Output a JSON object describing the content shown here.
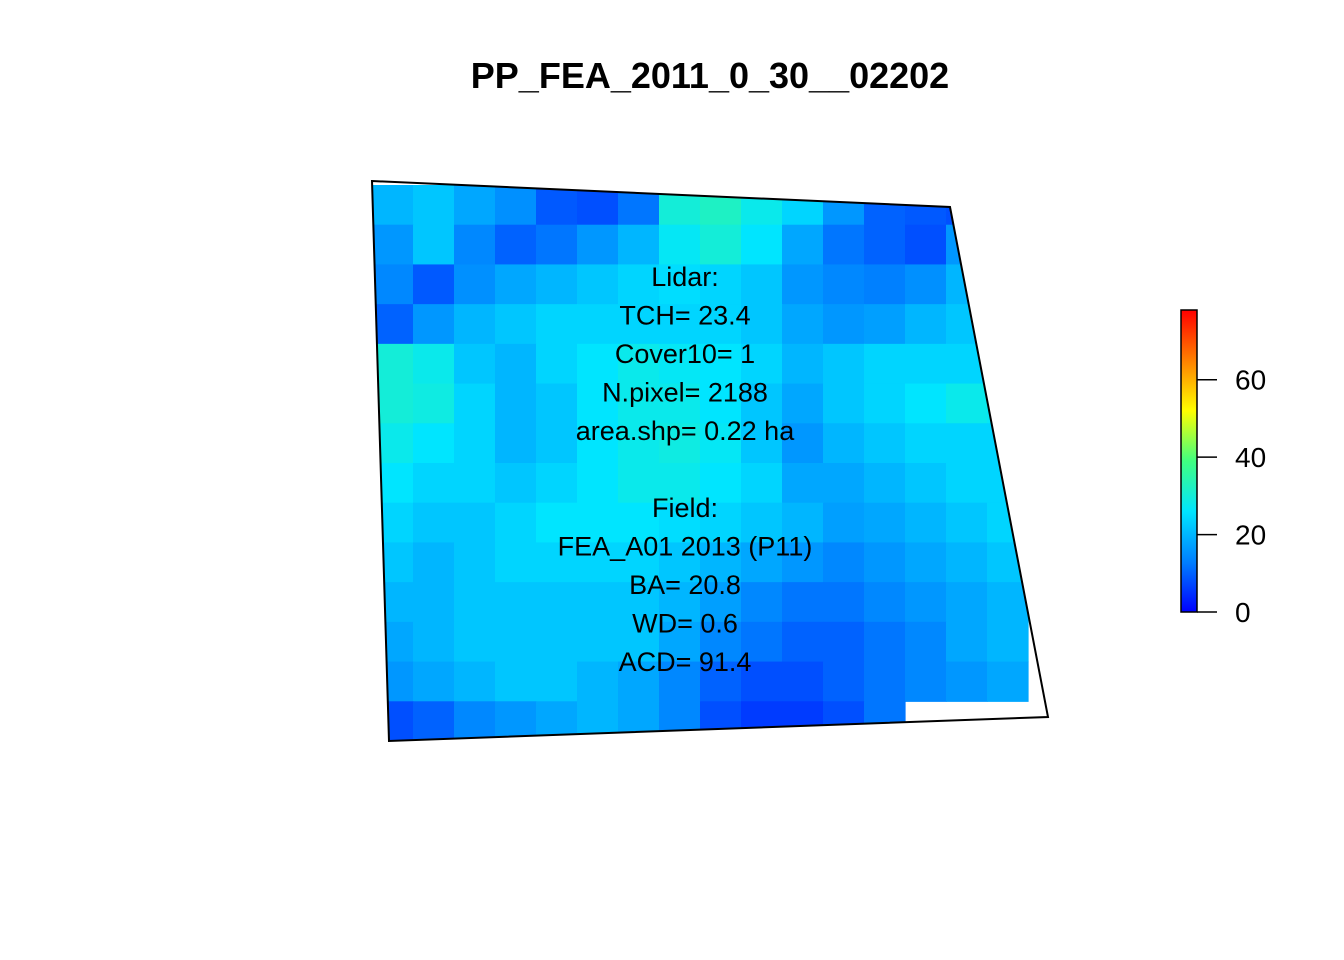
{
  "chart_data": {
    "type": "heatmap",
    "title": "PP_FEA_2011_0_30__02202",
    "annotation": [
      "Lidar:",
      "TCH= 23.4",
      "Cover10= 1",
      "N.pixel= 2188",
      "area.shp= 0.22 ha",
      "",
      "Field:",
      "FEA_A01 2013 (P11)",
      "BA= 20.8",
      "WD= 0.6",
      "ACD= 91.4"
    ],
    "colorbar": {
      "range": [
        0,
        78
      ],
      "ticks": [
        0,
        20,
        40,
        60
      ],
      "tick_labels": [
        "0",
        "20",
        "40",
        "60"
      ],
      "palette": [
        "#0000ff",
        "#0080ff",
        "#00e5ff",
        "#40ff80",
        "#ffff00",
        "#ff8000",
        "#ff0000"
      ]
    },
    "grid": {
      "rows": 14,
      "cols": 16,
      "values": [
        [
          20,
          22,
          18,
          15,
          9,
          8,
          12,
          30,
          32,
          28,
          24,
          16,
          10,
          9,
          8,
          -1
        ],
        [
          16,
          22,
          14,
          10,
          12,
          16,
          20,
          27,
          30,
          26,
          18,
          12,
          10,
          8,
          16,
          18
        ],
        [
          14,
          9,
          15,
          18,
          20,
          22,
          24,
          25,
          24,
          22,
          16,
          14,
          13,
          15,
          20,
          22
        ],
        [
          10,
          16,
          20,
          22,
          24,
          24,
          24,
          24,
          24,
          22,
          18,
          16,
          17,
          20,
          22,
          24
        ],
        [
          30,
          28,
          22,
          20,
          24,
          26,
          28,
          27,
          26,
          24,
          20,
          22,
          24,
          24,
          24,
          26
        ],
        [
          30,
          29,
          24,
          20,
          22,
          26,
          28,
          28,
          26,
          22,
          18,
          22,
          24,
          26,
          28,
          27
        ],
        [
          28,
          26,
          24,
          20,
          22,
          26,
          28,
          29,
          27,
          22,
          16,
          20,
          22,
          24,
          24,
          24
        ],
        [
          26,
          24,
          24,
          22,
          24,
          26,
          28,
          28,
          26,
          24,
          18,
          18,
          20,
          22,
          24,
          24
        ],
        [
          24,
          22,
          22,
          24,
          26,
          26,
          26,
          25,
          24,
          22,
          20,
          17,
          18,
          20,
          22,
          24
        ],
        [
          22,
          20,
          22,
          24,
          24,
          24,
          24,
          22,
          20,
          18,
          16,
          14,
          16,
          18,
          20,
          22
        ],
        [
          20,
          20,
          22,
          22,
          22,
          22,
          22,
          20,
          17,
          14,
          12,
          12,
          14,
          16,
          18,
          20
        ],
        [
          18,
          20,
          22,
          22,
          22,
          22,
          22,
          18,
          14,
          12,
          10,
          10,
          12,
          14,
          18,
          20
        ],
        [
          16,
          18,
          20,
          22,
          22,
          20,
          18,
          14,
          10,
          8,
          8,
          10,
          12,
          14,
          16,
          18
        ],
        [
          8,
          10,
          14,
          16,
          18,
          20,
          18,
          14,
          8,
          6,
          6,
          8,
          12,
          -1,
          -1,
          -1
        ]
      ]
    }
  }
}
